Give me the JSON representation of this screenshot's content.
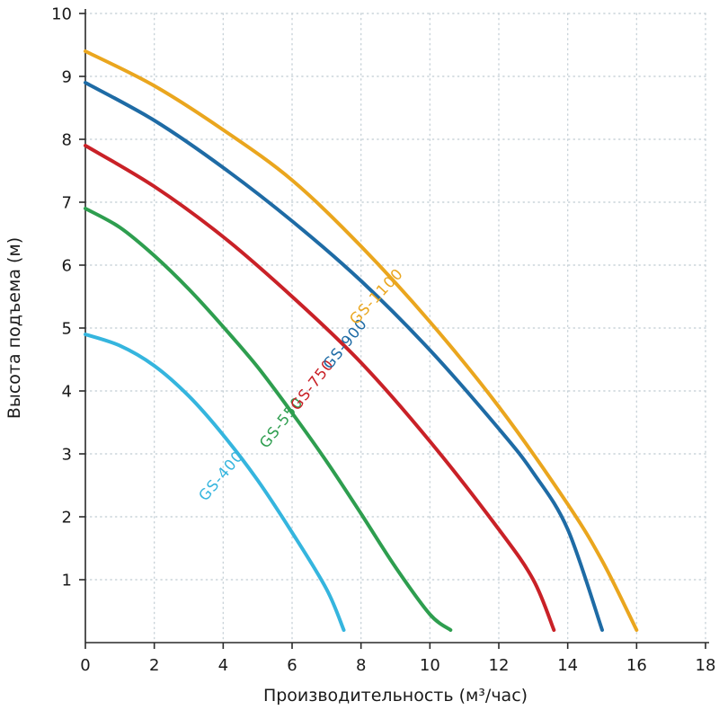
{
  "chart_data": {
    "type": "line",
    "title": "",
    "xlabel": "Производительность (м³/час)",
    "ylabel": "Высота подъема (м)",
    "xlim": [
      0,
      18
    ],
    "ylim": [
      0,
      10
    ],
    "x_ticks": [
      0,
      2,
      4,
      6,
      8,
      10,
      12,
      14,
      16,
      18
    ],
    "y_ticks": [
      1,
      2,
      3,
      4,
      5,
      6,
      7,
      8,
      9,
      10
    ],
    "grid": "dotted",
    "grid_color": "#c9d3d9",
    "axis_color": "#2a2a2a",
    "text_color": "#1a1a1a",
    "legend_position": "on-curve-labels",
    "series": [
      {
        "name": "GS-400",
        "color": "#35b5de",
        "points": [
          [
            0,
            4.9
          ],
          [
            1,
            4.72
          ],
          [
            2,
            4.4
          ],
          [
            3,
            3.92
          ],
          [
            4,
            3.3
          ],
          [
            5,
            2.58
          ],
          [
            6,
            1.75
          ],
          [
            7,
            0.85
          ],
          [
            7.5,
            0.2
          ]
        ],
        "label": {
          "text": "GS-400",
          "x": 4.05,
          "y": 2.6,
          "angle": -50
        }
      },
      {
        "name": "GS-550",
        "color": "#2e9e4f",
        "points": [
          [
            0,
            6.9
          ],
          [
            1,
            6.6
          ],
          [
            2,
            6.15
          ],
          [
            3,
            5.62
          ],
          [
            4,
            5.02
          ],
          [
            5,
            4.38
          ],
          [
            6,
            3.65
          ],
          [
            7,
            2.88
          ],
          [
            8,
            2.05
          ],
          [
            9,
            1.2
          ],
          [
            10,
            0.45
          ],
          [
            10.6,
            0.2
          ]
        ],
        "label": {
          "text": "GS-550",
          "x": 5.8,
          "y": 3.45,
          "angle": -52
        }
      },
      {
        "name": "GS-750",
        "color": "#c92127",
        "points": [
          [
            0,
            7.9
          ],
          [
            2,
            7.25
          ],
          [
            4,
            6.45
          ],
          [
            6,
            5.5
          ],
          [
            8,
            4.45
          ],
          [
            10,
            3.2
          ],
          [
            12,
            1.8
          ],
          [
            13,
            1.0
          ],
          [
            13.6,
            0.2
          ]
        ],
        "label": {
          "text": "GS-750",
          "x": 6.7,
          "y": 4.05,
          "angle": -52
        }
      },
      {
        "name": "GS-900",
        "color": "#1e6ba5",
        "points": [
          [
            0,
            8.9
          ],
          [
            2,
            8.3
          ],
          [
            4,
            7.55
          ],
          [
            6,
            6.7
          ],
          [
            8,
            5.75
          ],
          [
            10,
            4.65
          ],
          [
            12,
            3.4
          ],
          [
            13,
            2.7
          ],
          [
            14,
            1.8
          ],
          [
            15,
            0.2
          ]
        ],
        "label": {
          "text": "GS-900",
          "x": 7.65,
          "y": 4.7,
          "angle": -51
        }
      },
      {
        "name": "GS-1100",
        "color": "#eaa61e",
        "points": [
          [
            0,
            9.4
          ],
          [
            2,
            8.85
          ],
          [
            4,
            8.15
          ],
          [
            6,
            7.35
          ],
          [
            8,
            6.3
          ],
          [
            10,
            5.1
          ],
          [
            12,
            3.75
          ],
          [
            14,
            2.2
          ],
          [
            15,
            1.3
          ],
          [
            16,
            0.2
          ]
        ],
        "label": {
          "text": "GS-1100",
          "x": 8.55,
          "y": 5.45,
          "angle": -47
        }
      }
    ]
  }
}
